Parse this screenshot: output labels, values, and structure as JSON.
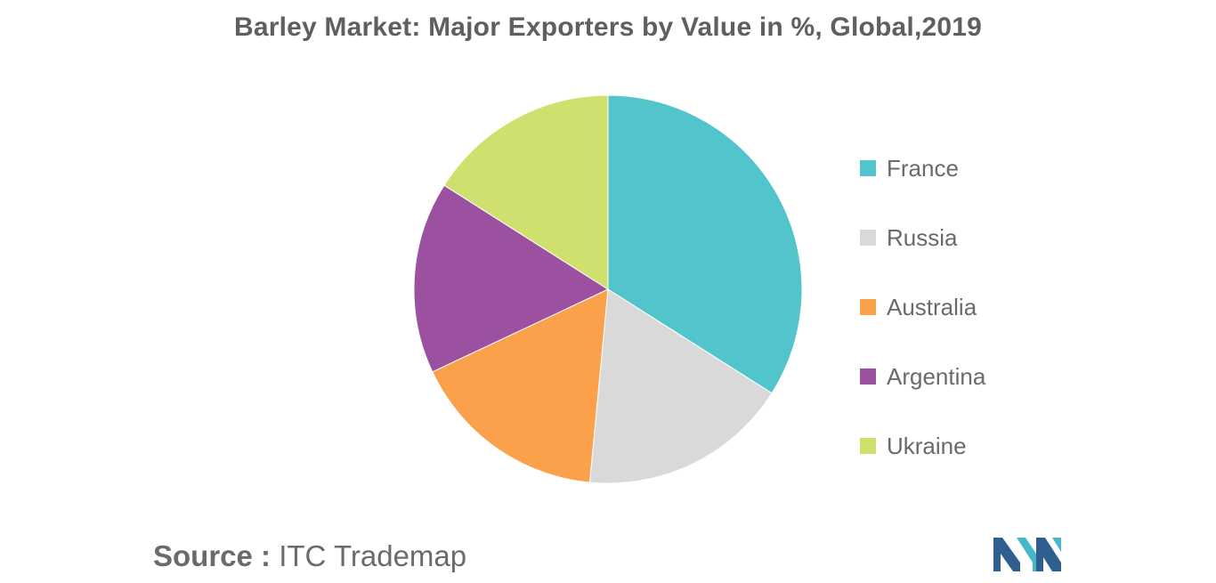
{
  "chart_data": {
    "type": "pie",
    "title": "Barley Market: Major Exporters by Value in %, Global,2019",
    "categories": [
      "France",
      "Russia",
      "Australia",
      "Argentina",
      "Ukraine"
    ],
    "values": [
      34,
      17.5,
      16.5,
      16,
      16
    ],
    "colors": [
      "#52c4cb",
      "#d9d9d9",
      "#fba04b",
      "#9b51a0",
      "#cfe06e"
    ],
    "legend_position": "right"
  },
  "source": {
    "label": "Source :",
    "text": "ITC Trademap"
  },
  "logo": {
    "icon": "mordor-intelligence-logo",
    "colors": [
      "#2f5f8f",
      "#46b9c8"
    ]
  }
}
